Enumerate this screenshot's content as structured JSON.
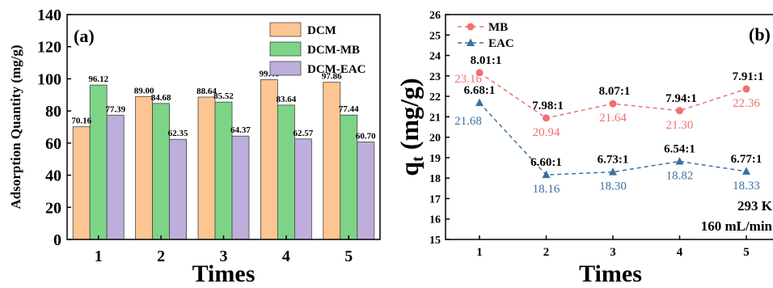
{
  "chart_data": [
    {
      "type": "bar",
      "panel_label": "(a)",
      "xlabel": "Times",
      "ylabel": "Adsorption Quantity (mg/g)",
      "categories": [
        "1",
        "2",
        "3",
        "4",
        "5"
      ],
      "ylim": [
        0,
        140
      ],
      "yticks": [
        "0",
        "20",
        "40",
        "60",
        "80",
        "100",
        "120",
        "140"
      ],
      "legend_position": "top-right",
      "series": [
        {
          "name": "DCM",
          "color": "#FDC592",
          "values": [
            70.16,
            89.0,
            88.64,
            99.46,
            97.86
          ],
          "labels": [
            "70.16",
            "89.00",
            "88.64",
            "99.46",
            "97.86"
          ]
        },
        {
          "name": "DCM-MB",
          "color": "#7DD487",
          "values": [
            96.12,
            84.68,
            85.52,
            83.64,
            77.44
          ],
          "labels": [
            "96.12",
            "84.68",
            "85.52",
            "83.64",
            "77.44"
          ]
        },
        {
          "name": "DCM-EAC",
          "color": "#BDAEDB",
          "values": [
            77.39,
            62.35,
            64.37,
            62.57,
            60.7
          ],
          "labels": [
            "77.39",
            "62.35",
            "64.37",
            "62.57",
            "60.70"
          ]
        }
      ]
    },
    {
      "type": "line",
      "panel_label": "(b)",
      "xlabel": "Times",
      "ylabel_main": "q",
      "ylabel_sub": "t",
      "ylabel_unit": " (mg/g)",
      "x": [
        1,
        2,
        3,
        4,
        5
      ],
      "xticks": [
        "1",
        "2",
        "3",
        "4",
        "5"
      ],
      "ylim": [
        15,
        26
      ],
      "yticks": [
        "15",
        "16",
        "17",
        "18",
        "19",
        "20",
        "21",
        "22",
        "23",
        "24",
        "25",
        "26"
      ],
      "legend_position": "top-left",
      "ratio_labels": [
        "8.01:1",
        "7.98:1",
        "8.07:1",
        "7.94:1",
        "7.91:1",
        "6.68:1",
        "6.60:1",
        "6.73:1",
        "6.54:1",
        "6.77:1"
      ],
      "series": [
        {
          "name": "MB",
          "color": "#F07070",
          "marker": "circle",
          "values": [
            23.16,
            20.94,
            21.64,
            21.3,
            22.36
          ],
          "labels": [
            "23.16",
            "20.94",
            "21.64",
            "21.30",
            "22.36"
          ]
        },
        {
          "name": "EAC",
          "color": "#3D6FA3",
          "marker": "triangle",
          "values": [
            21.68,
            18.16,
            18.3,
            18.82,
            18.33
          ],
          "labels": [
            "21.68",
            "18.16",
            "18.30",
            "18.82",
            "18.33"
          ]
        }
      ],
      "annotations": [
        "293 K",
        "160 mL/min"
      ]
    }
  ]
}
